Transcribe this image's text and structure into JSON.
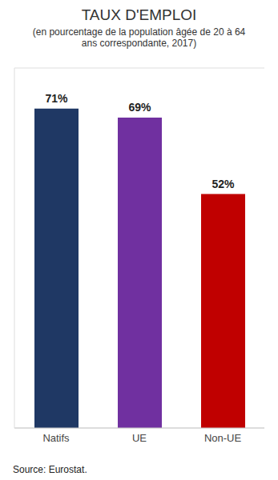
{
  "chart_data": {
    "type": "bar",
    "title": "TAUX D'EMPLOI",
    "subtitle": "(en pourcentage de la population âgée de 20 à 64 ans correspondante, 2017)",
    "source": "Source: Eurostat.",
    "categories": [
      "Natifs",
      "UE",
      "Non-UE"
    ],
    "values": [
      71,
      69,
      52
    ],
    "value_labels": [
      "71%",
      "69%",
      "52%"
    ],
    "colors": [
      "#1f3864",
      "#7030a0",
      "#c00000"
    ],
    "ylim": [
      0,
      80
    ],
    "yticks": [
      0,
      10,
      20,
      30,
      40,
      50,
      60,
      70,
      80
    ],
    "grid": true,
    "data_labels": true,
    "tick_labels": "x"
  }
}
